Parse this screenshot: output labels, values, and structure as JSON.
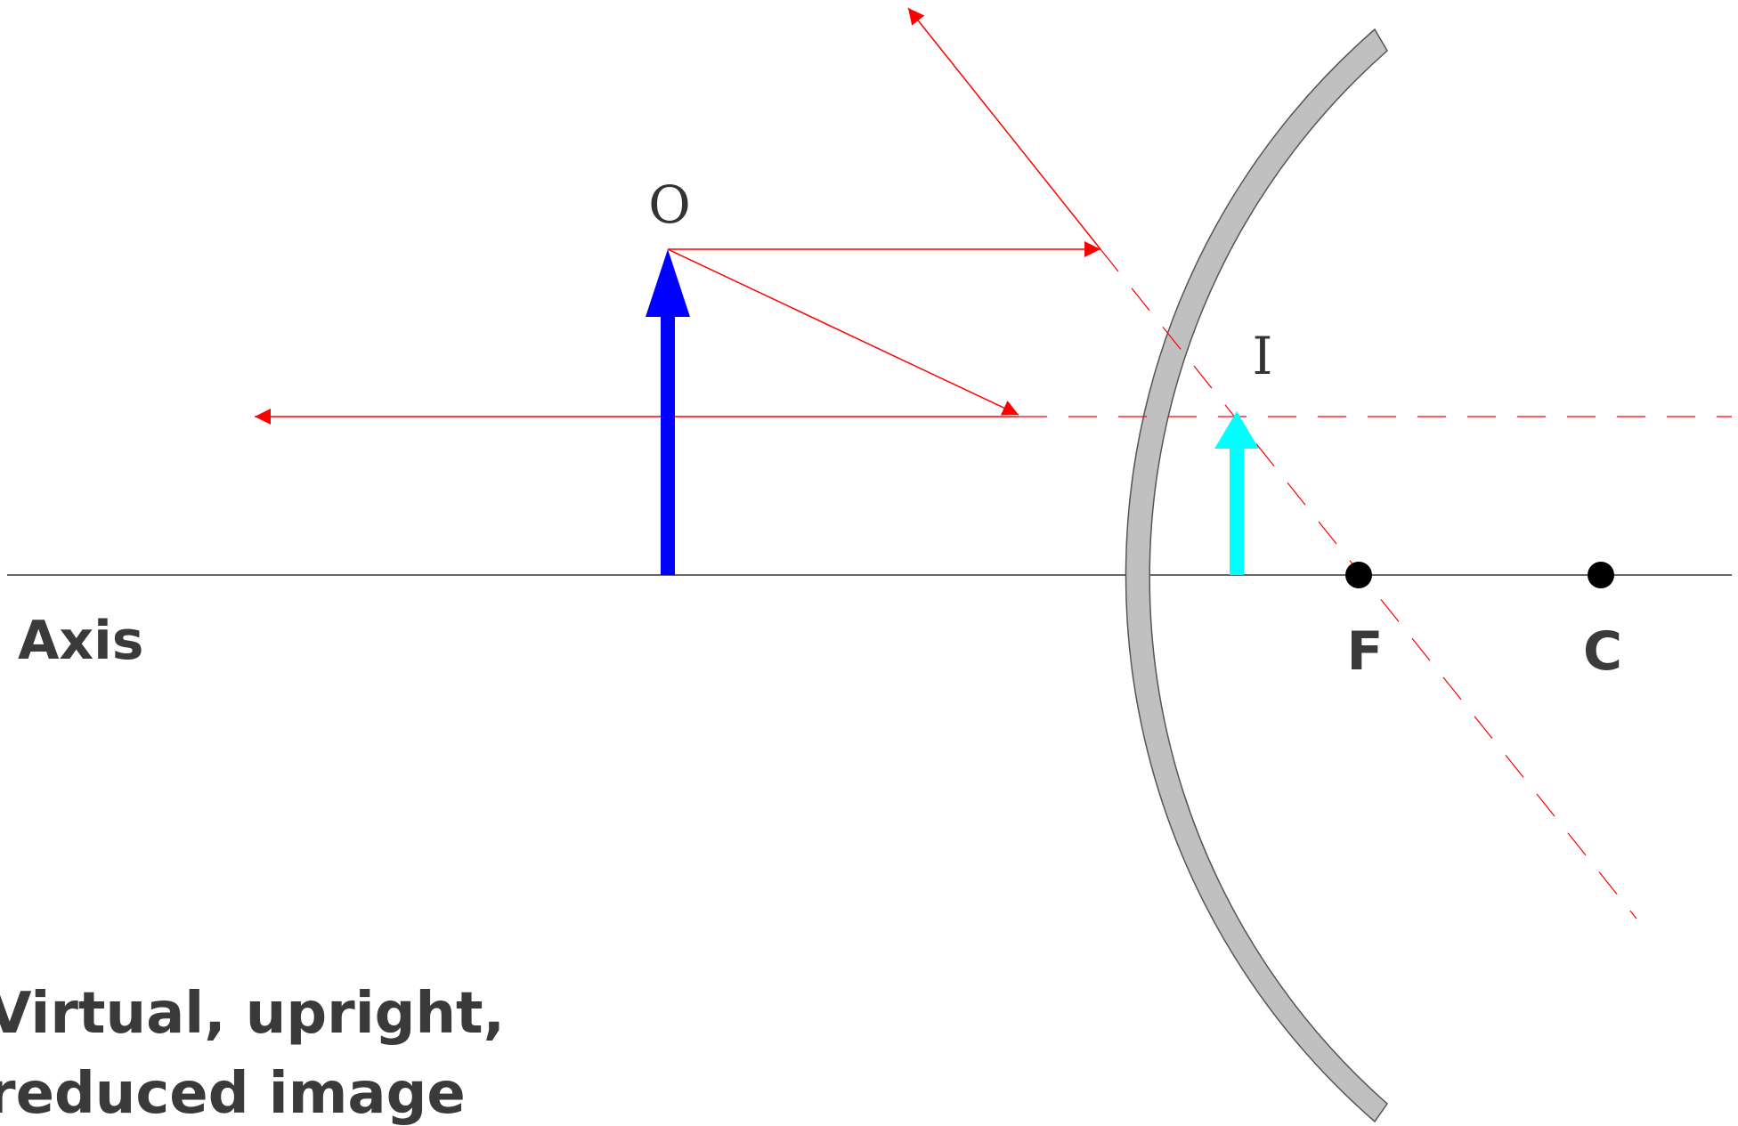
{
  "labels": {
    "object": "O",
    "image": "I",
    "axis": "Axis",
    "focal_point": "F",
    "center_of_curvature": "C",
    "caption_line1": "Virtual, upright,",
    "caption_line2": "reduced image"
  },
  "colors": {
    "object_arrow": "#0000ff",
    "image_arrow": "#00ffff",
    "rays": "#ff0000",
    "mirror_fill": "#c0c0c0",
    "mirror_stroke": "#555555",
    "axis_line": "#333333",
    "points": "#000000"
  }
}
